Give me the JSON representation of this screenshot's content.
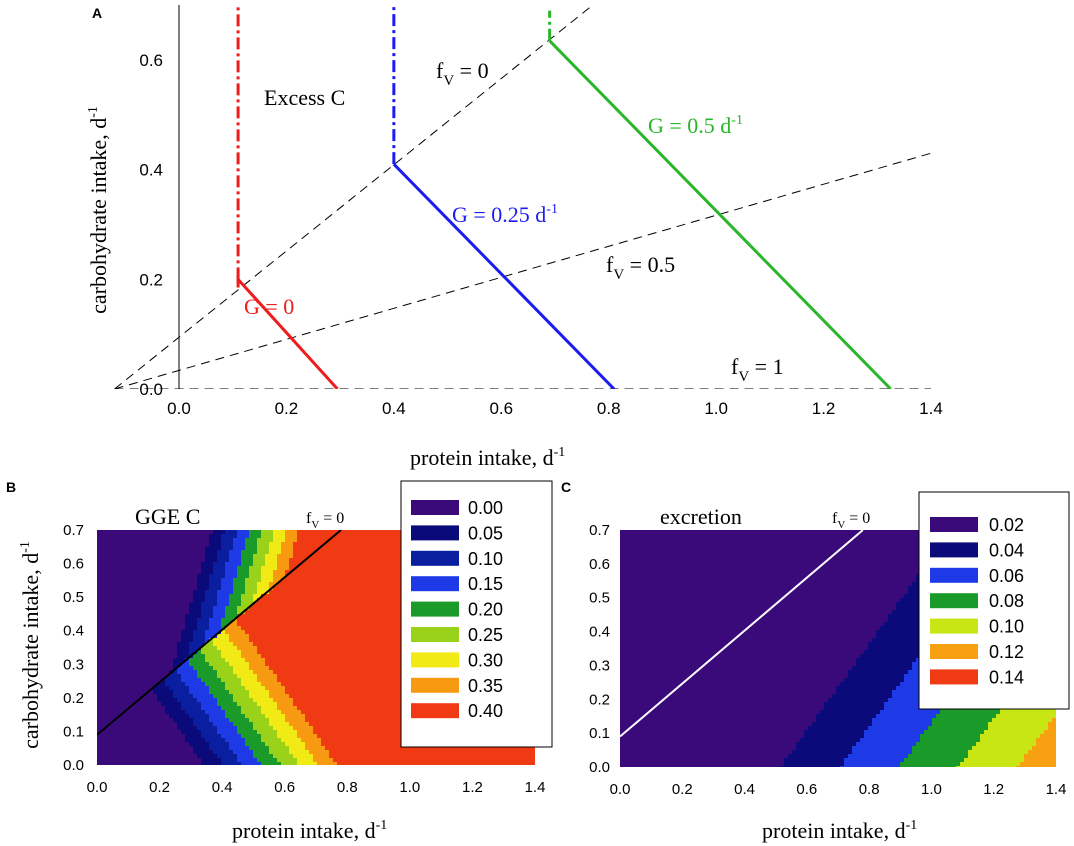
{
  "chart_data": [
    {
      "panel": "A",
      "type": "line",
      "xlabel": "protein intake, d",
      "xlabel_sup": "-1",
      "ylabel": "carbohydrate intake, d",
      "ylabel_sup": "-1",
      "xlim": [
        -0.12,
        1.4
      ],
      "ylim": [
        0,
        0.7
      ],
      "xticks": [
        0.0,
        0.2,
        0.4,
        0.6,
        0.8,
        1.0,
        1.2,
        1.4
      ],
      "xtick_labels": [
        "0.0",
        "0.2",
        "0.4",
        "0.6",
        "0.8",
        "1.0",
        "1.2",
        "1.4"
      ],
      "yticks": [
        0.0,
        0.2,
        0.4,
        0.6
      ],
      "ytick_labels": [
        "0.0",
        "0.2",
        "0.4",
        "0.6"
      ],
      "region_label": "Excess C",
      "reference_lines": [
        {
          "name": "fV = 0",
          "label_main": "f",
          "label_sub": "V",
          "label_rest": " = 0",
          "points": [
            [
              -0.12,
              0.0
            ],
            [
              0.77,
              0.7
            ]
          ]
        },
        {
          "name": "fV = 0.5",
          "label_main": "f",
          "label_sub": "V",
          "label_rest": " = 0.5",
          "points": [
            [
              -0.12,
              0.0
            ],
            [
              1.4,
              0.43
            ]
          ]
        },
        {
          "name": "fV = 1",
          "label_main": "f",
          "label_sub": "V",
          "label_rest": " = 1",
          "points": [
            [
              -0.12,
              0.0
            ],
            [
              1.4,
              0.0
            ]
          ]
        }
      ],
      "series": [
        {
          "name": "G = 0",
          "label_main": "G = 0",
          "label_sup": "",
          "color": "#ee1c1c",
          "solid": [
            [
              0.11,
              0.185
            ],
            [
              0.11,
              0.2
            ],
            [
              0.295,
              0.0
            ]
          ],
          "dashdot": [
            [
              0.11,
              0.2
            ],
            [
              0.11,
              0.7
            ]
          ]
        },
        {
          "name": "G = 0.25 d-1",
          "label_main": "G = 0.25 d",
          "label_sup": "-1",
          "color": "#1c1cf0",
          "solid": [
            [
              0.4,
              0.41
            ],
            [
              0.81,
              0.0
            ]
          ],
          "dashdot": [
            [
              0.4,
              0.41
            ],
            [
              0.4,
              0.7
            ]
          ]
        },
        {
          "name": "G = 0.5 d-1",
          "label_main": "G = 0.5 d",
          "label_sup": "-1",
          "color": "#2ab52a",
          "solid": [
            [
              0.69,
              0.635
            ],
            [
              1.325,
              0.0
            ]
          ],
          "dashdot": [
            [
              0.69,
              0.635
            ],
            [
              0.69,
              0.69
            ]
          ]
        }
      ]
    },
    {
      "panel": "B",
      "type": "heatmap",
      "title": "GGE C",
      "xlabel": "protein intake, d",
      "xlabel_sup": "-1",
      "ylabel": "carbohydrate intake, d",
      "ylabel_sup": "-1",
      "xlim": [
        0,
        1.4
      ],
      "ylim": [
        0,
        0.7
      ],
      "xtick_labels": [
        "0.0",
        "0.2",
        "0.4",
        "0.6",
        "0.8",
        "1.0",
        "1.2",
        "1.4"
      ],
      "ytick_labels": [
        "0.0",
        "0.1",
        "0.2",
        "0.3",
        "0.4",
        "0.5",
        "0.6",
        "0.7"
      ],
      "overlay_line": {
        "label_main": "f",
        "label_sub": "V",
        "label_rest": " = 0",
        "color": "#000000",
        "points": [
          [
            0.0,
            0.09
          ],
          [
            0.78,
            0.7
          ]
        ]
      },
      "legend": [
        {
          "label": "0.00",
          "color": "#3a0a7a"
        },
        {
          "label": "0.05",
          "color": "#0a0a7a"
        },
        {
          "label": "0.10",
          "color": "#0a1ea0"
        },
        {
          "label": "0.15",
          "color": "#1e3ae6"
        },
        {
          "label": "0.20",
          "color": "#1a9a28"
        },
        {
          "label": "0.25",
          "color": "#9ad21a"
        },
        {
          "label": "0.30",
          "color": "#f2ea14"
        },
        {
          "label": "0.35",
          "color": "#f79a12"
        },
        {
          "label": "0.40",
          "color": "#f03a14"
        }
      ]
    },
    {
      "panel": "C",
      "type": "heatmap",
      "title": "excretion",
      "xlabel": "protein intake, d",
      "xlabel_sup": "-1",
      "xlim": [
        0,
        1.4
      ],
      "ylim": [
        0,
        0.7
      ],
      "xtick_labels": [
        "0.0",
        "0.2",
        "0.4",
        "0.6",
        "0.8",
        "1.0",
        "1.2",
        "1.4"
      ],
      "ytick_labels": [
        "0.0",
        "0.1",
        "0.2",
        "0.3",
        "0.4",
        "0.5",
        "0.6",
        "0.7"
      ],
      "overlay_line": {
        "label_main": "f",
        "label_sub": "V",
        "label_rest": " = 0",
        "color": "#ffffff",
        "points": [
          [
            0.0,
            0.09
          ],
          [
            0.78,
            0.7
          ]
        ]
      },
      "legend": [
        {
          "label": "0.02",
          "color": "#3a0a7a"
        },
        {
          "label": "0.04",
          "color": "#0a0a7a"
        },
        {
          "label": "0.06",
          "color": "#1e3ae6"
        },
        {
          "label": "0.08",
          "color": "#1a9a28"
        },
        {
          "label": "0.10",
          "color": "#c8e614"
        },
        {
          "label": "0.12",
          "color": "#f7a012"
        },
        {
          "label": "0.14",
          "color": "#f03a14"
        }
      ]
    }
  ]
}
